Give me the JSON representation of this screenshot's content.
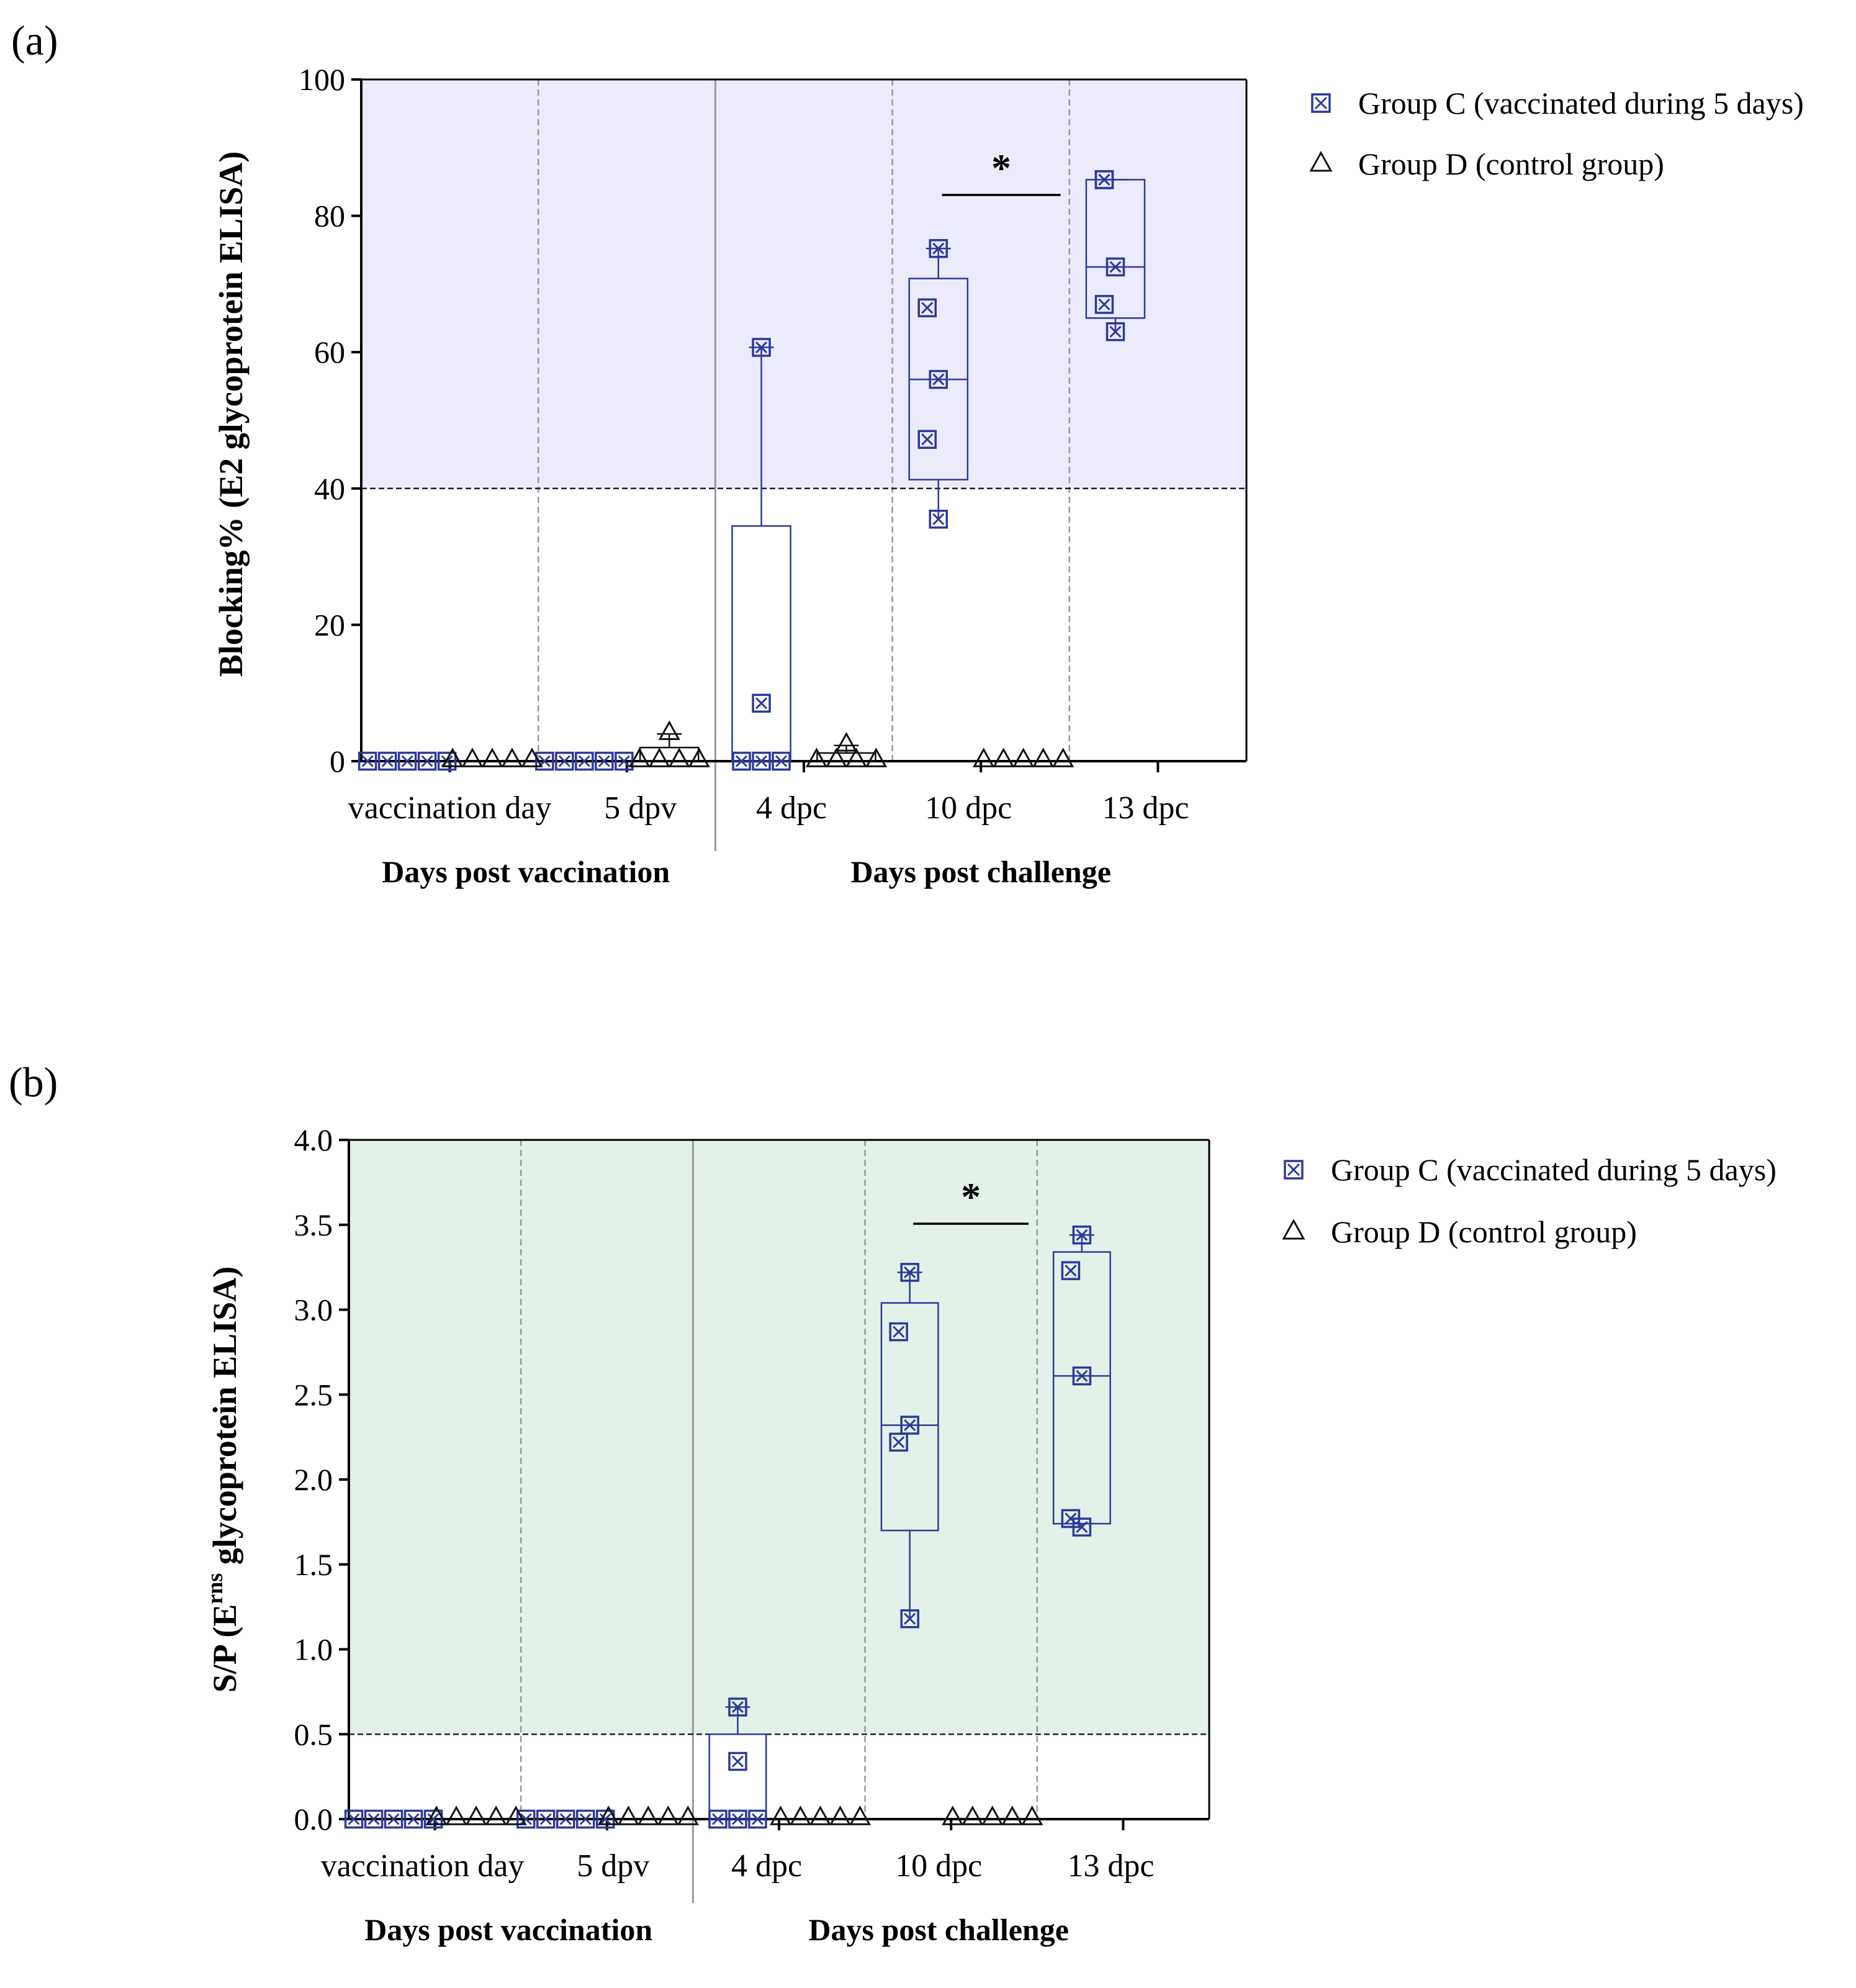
{
  "colors": {
    "group_c": "#2b3a9b",
    "group_d": "#111111",
    "panel_a_bg": "#ebebfb",
    "panel_b_bg": "#e3f1e9",
    "axis": "#000000",
    "divider": "#999999"
  },
  "legend": {
    "group_c": "Group C (vaccinated during 5 days)",
    "group_d": "Group D (control group)"
  },
  "chart_data": [
    {
      "type": "box",
      "panel_label": "(a)",
      "ylabel": "Blocking% (E2 glycoprotein ELISA)",
      "ylim": [
        0,
        100
      ],
      "yticks": [
        "0",
        "20",
        "40",
        "60",
        "80",
        "100"
      ],
      "threshold": 40,
      "shaded_region": [
        40,
        100
      ],
      "categories": [
        "vaccination day",
        "5 dpv",
        "4 dpc",
        "10 dpc",
        "13 dpc"
      ],
      "category_groups": [
        {
          "label": "Days post vaccination",
          "categories": [
            "vaccination day",
            "5 dpv"
          ]
        },
        {
          "label": "Days post challenge",
          "categories": [
            "4 dpc",
            "10 dpc",
            "13 dpc"
          ]
        }
      ],
      "significance": [
        {
          "category": "10 dpc",
          "symbol": "*"
        }
      ],
      "series": [
        {
          "name": "Group C (vaccinated during 5 days)",
          "marker": "boxed-x",
          "points": [
            [
              0,
              0,
              0,
              0,
              0
            ],
            [
              0,
              0,
              0,
              0,
              0
            ],
            [
              0,
              0,
              0,
              8.5,
              60.7
            ],
            [
              35.5,
              47.2,
              56,
              66.5,
              75.2
            ],
            [
              63,
              67,
              72.5,
              85.3,
              85.3
            ]
          ],
          "boxes": [
            null,
            null,
            {
              "min": 0,
              "q1": 0,
              "median": 0,
              "q3": 34.5,
              "max": 60.7
            },
            {
              "min": 35.5,
              "q1": 41.3,
              "median": 56,
              "q3": 70.8,
              "max": 75.2
            },
            {
              "min": 63,
              "q1": 65,
              "median": 72.5,
              "q3": 85.3,
              "max": 85.3
            }
          ]
        },
        {
          "name": "Group D (control group)",
          "marker": "triangle",
          "points": [
            [
              0,
              0,
              0,
              0,
              0
            ],
            [
              0,
              0,
              0,
              0,
              4
            ],
            [
              0,
              0,
              0,
              0,
              2.3
            ],
            [
              0,
              0,
              0,
              0,
              0
            ],
            []
          ],
          "boxes": [
            null,
            {
              "min": 0,
              "q1": 0,
              "median": 0,
              "q3": 2,
              "max": 4
            },
            {
              "min": 0,
              "q1": 0,
              "median": 0,
              "q3": 1.2,
              "max": 2.3
            },
            null,
            null
          ]
        }
      ]
    },
    {
      "type": "box",
      "panel_label": "(b)",
      "ylabel_main": "S/P (E",
      "ylabel_sup": "rns",
      "ylabel_rest": " glycoprotein ELISA)",
      "ylim": [
        0,
        4
      ],
      "yticks": [
        "0.0",
        "0.5",
        "1.0",
        "1.5",
        "2.0",
        "2.5",
        "3.0",
        "3.5",
        "4.0"
      ],
      "threshold": 0.5,
      "shaded_region": [
        0.5,
        4
      ],
      "categories": [
        "vaccination day",
        "5 dpv",
        "4 dpc",
        "10 dpc",
        "13 dpc"
      ],
      "category_groups": [
        {
          "label": "Days post vaccination",
          "categories": [
            "vaccination day",
            "5 dpv"
          ]
        },
        {
          "label": "Days post challenge",
          "categories": [
            "4 dpc",
            "10 dpc",
            "13 dpc"
          ]
        }
      ],
      "significance": [
        {
          "category": "10 dpc",
          "symbol": "*"
        }
      ],
      "series": [
        {
          "name": "Group C (vaccinated during 5 days)",
          "marker": "boxed-x",
          "points": [
            [
              0,
              0,
              0,
              0,
              0
            ],
            [
              0,
              0,
              0,
              0,
              0
            ],
            [
              0,
              0,
              0,
              0.34,
              0.66
            ],
            [
              1.18,
              2.22,
              2.32,
              2.87,
              3.22
            ],
            [
              1.72,
              1.77,
              2.61,
              3.23,
              3.44
            ]
          ],
          "boxes": [
            null,
            null,
            {
              "min": 0,
              "q1": 0,
              "median": 0,
              "q3": 0.5,
              "max": 0.66
            },
            {
              "min": 1.18,
              "q1": 1.7,
              "median": 2.32,
              "q3": 3.04,
              "max": 3.22
            },
            {
              "min": 1.72,
              "q1": 1.74,
              "median": 2.61,
              "q3": 3.34,
              "max": 3.44
            }
          ]
        },
        {
          "name": "Group D (control group)",
          "marker": "triangle",
          "points": [
            [
              0,
              0,
              0,
              0,
              0
            ],
            [
              0,
              0,
              0,
              0,
              0
            ],
            [
              0,
              0,
              0,
              0,
              0
            ],
            [
              0,
              0,
              0,
              0,
              0
            ],
            []
          ],
          "boxes": [
            null,
            null,
            null,
            null,
            null
          ]
        }
      ]
    }
  ]
}
